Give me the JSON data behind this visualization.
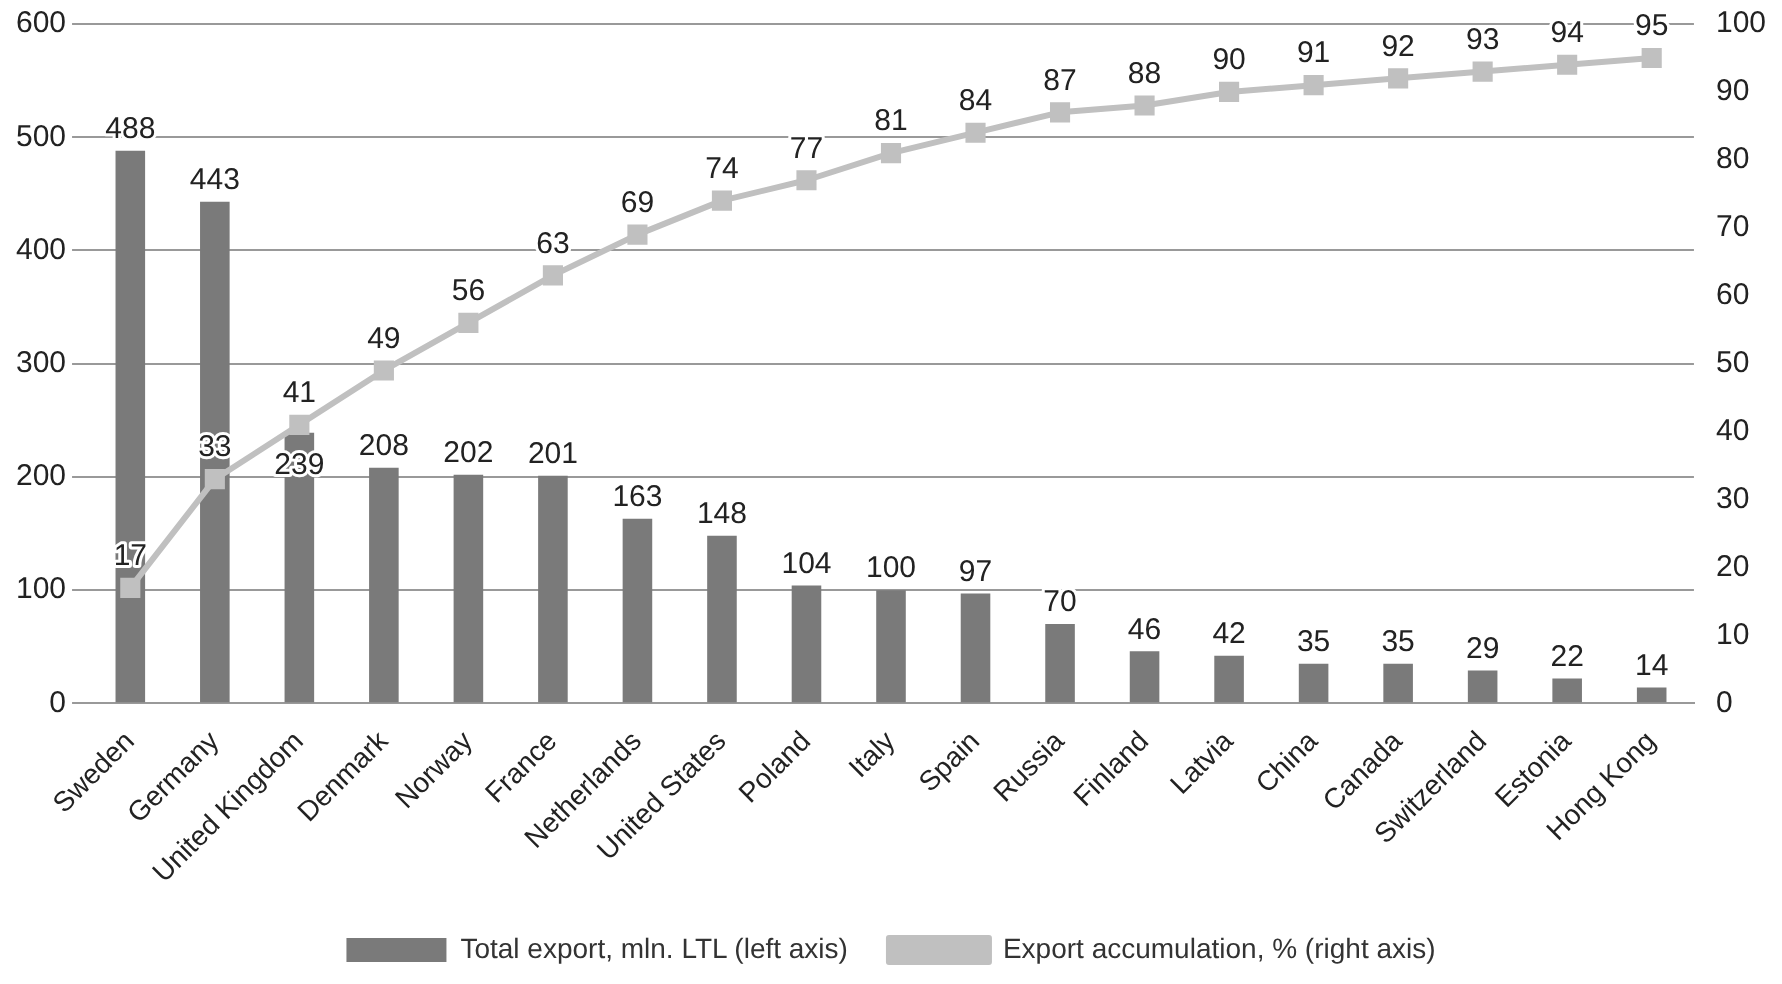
{
  "chart_data": {
    "type": "bar",
    "categories": [
      "Sweden",
      "Germany",
      "United Kingdom",
      "Denmark",
      "Norway",
      "France",
      "Netherlands",
      "United States",
      "Poland",
      "Italy",
      "Spain",
      "Russia",
      "Finland",
      "Latvia",
      "China",
      "Canada",
      "Switzerland",
      "Estonia",
      "Hong Kong"
    ],
    "series": [
      {
        "name": "Total export, mln. LTL (left axis)",
        "type": "bar",
        "color": "#7a7a7a",
        "values": [
          488,
          443,
          239,
          208,
          202,
          201,
          163,
          148,
          104,
          100,
          97,
          70,
          46,
          42,
          35,
          35,
          29,
          22,
          14
        ]
      },
      {
        "name": "Export accumulation, % (right axis)",
        "type": "line",
        "axis": "y2",
        "color": "#c0c0c0",
        "marker": "square",
        "values": [
          17,
          33,
          41,
          49,
          56,
          63,
          69,
          74,
          77,
          81,
          84,
          87,
          88,
          90,
          91,
          92,
          93,
          94,
          95
        ]
      }
    ],
    "ylim": [
      0,
      600
    ],
    "yticks": [
      0,
      100,
      200,
      300,
      400,
      500,
      600
    ],
    "y2lim": [
      0,
      100
    ],
    "y2ticks": [
      0,
      10,
      20,
      30,
      40,
      50,
      60,
      70,
      80,
      90,
      100
    ],
    "grid": "y",
    "legend": "bottom",
    "data_labels": true
  }
}
